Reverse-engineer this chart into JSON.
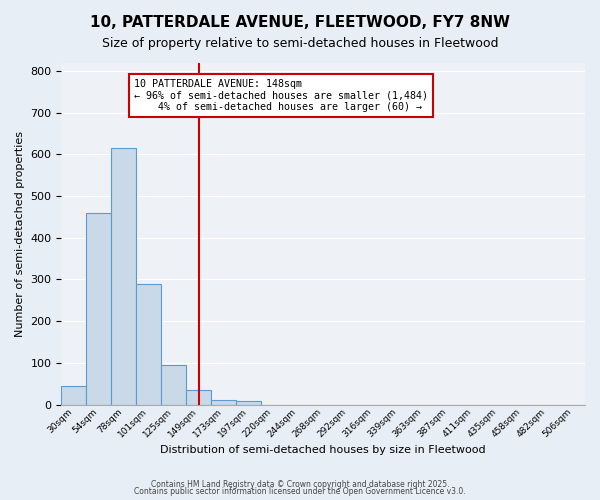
{
  "title": "10, PATTERDALE AVENUE, FLEETWOOD, FY7 8NW",
  "subtitle": "Size of property relative to semi-detached houses in Fleetwood",
  "xlabel": "Distribution of semi-detached houses by size in Fleetwood",
  "ylabel": "Number of semi-detached properties",
  "bin_labels": [
    "30sqm",
    "54sqm",
    "78sqm",
    "101sqm",
    "125sqm",
    "149sqm",
    "173sqm",
    "197sqm",
    "220sqm",
    "244sqm",
    "268sqm",
    "292sqm",
    "316sqm",
    "339sqm",
    "363sqm",
    "387sqm",
    "411sqm",
    "435sqm",
    "458sqm",
    "482sqm",
    "506sqm"
  ],
  "bar_values": [
    45,
    460,
    615,
    290,
    95,
    35,
    12,
    8,
    0,
    0,
    0,
    0,
    0,
    0,
    0,
    0,
    0,
    0,
    0,
    0,
    0
  ],
  "bar_color": "#c9d9e8",
  "bar_edge_color": "#5b9bd5",
  "vline_x": 5,
  "vline_color": "#cc0000",
  "annotation_text": "10 PATTERDALE AVENUE: 148sqm\n← 96% of semi-detached houses are smaller (1,484)\n    4% of semi-detached houses are larger (60) →",
  "annotation_box_color": "#ffffff",
  "annotation_box_edge": "#cc0000",
  "ylim": [
    0,
    820
  ],
  "yticks": [
    0,
    100,
    200,
    300,
    400,
    500,
    600,
    700,
    800
  ],
  "bg_color": "#e8eef5",
  "plot_bg_color": "#eef2f7",
  "footer_line1": "Contains HM Land Registry data © Crown copyright and database right 2025.",
  "footer_line2": "Contains public sector information licensed under the Open Government Licence v3.0.",
  "title_fontsize": 11,
  "subtitle_fontsize": 9
}
